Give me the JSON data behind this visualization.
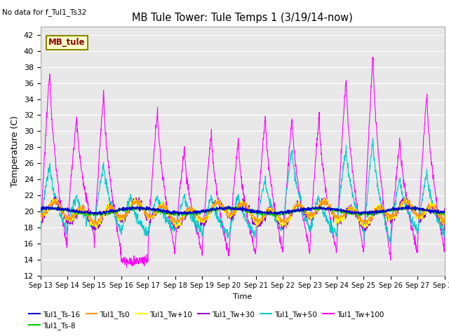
{
  "title": "MB Tule Tower: Tule Temps 1 (3/19/14-now)",
  "no_data_text": "No data for f_Tul1_Ts32",
  "xlabel": "Time",
  "ylabel": "Temperature (C)",
  "ylim": [
    12,
    43
  ],
  "yticks": [
    12,
    14,
    16,
    18,
    20,
    22,
    24,
    26,
    28,
    30,
    32,
    34,
    36,
    38,
    40,
    42
  ],
  "x_tick_labels": [
    "Sep 13",
    "Sep 14",
    "Sep 15",
    "Sep 16",
    "Sep 17",
    "Sep 18",
    "Sep 19",
    "Sep 20",
    "Sep 21",
    "Sep 22",
    "Sep 23",
    "Sep 24",
    "Sep 25",
    "Sep 26",
    "Sep 27",
    "Sep 28"
  ],
  "legend_label": "MB_tule",
  "legend_bg": "#ffffcc",
  "legend_border": "#888800",
  "bg_color": "#e8e8e8",
  "grid_color": "#ffffff",
  "series_colors": {
    "Tul1_Ts-16": "#0000cc",
    "Tul1_Ts-8": "#00cc00",
    "Tul1_Ts0": "#ff9900",
    "Tul1_Tw+10": "#ffff00",
    "Tul1_Tw+30": "#9900cc",
    "Tul1_Tw+50": "#00cccc",
    "Tul1_Tw+100": "#ff00ff"
  },
  "tw100_day_peaks": [
    0.35,
    1.35,
    2.35,
    3.35,
    4.35,
    5.35,
    6.35,
    7.35,
    8.35,
    9.35,
    10.35,
    11.35,
    12.35,
    13.35,
    14.35
  ],
  "tw100_peak_heights": [
    38,
    32,
    35,
    13.5,
    33,
    28,
    30,
    29,
    32,
    32,
    32,
    37,
    40,
    29,
    35
  ],
  "tw100_night_mins": [
    15,
    17,
    15,
    14,
    15,
    15,
    14.5,
    14.5,
    15,
    15,
    15,
    15,
    14,
    15,
    15
  ]
}
